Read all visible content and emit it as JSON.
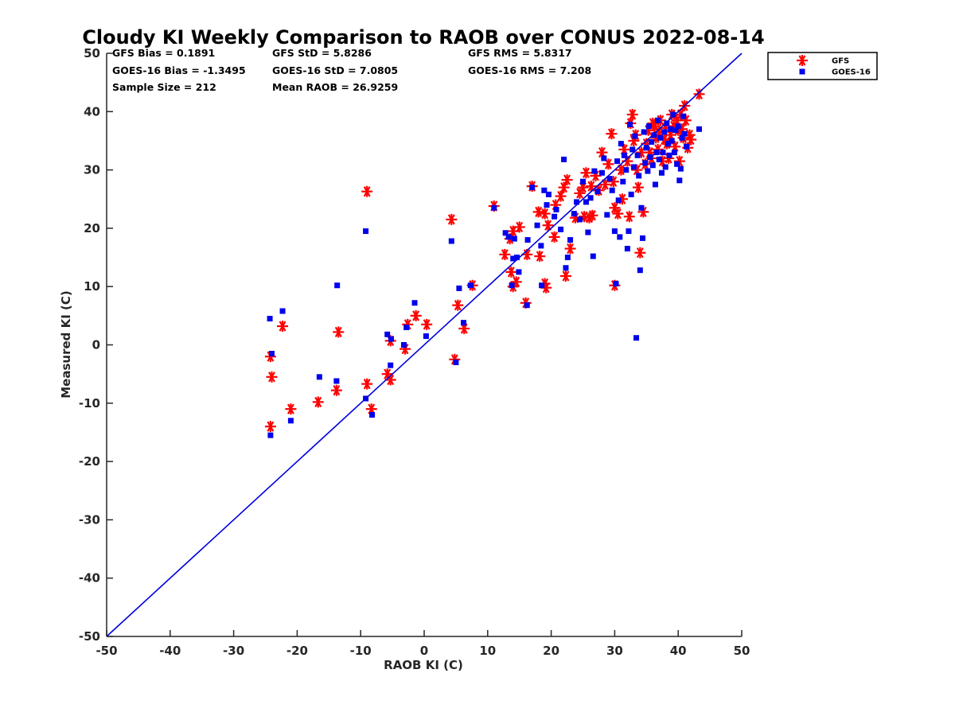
{
  "chart_data": {
    "type": "scatter",
    "title": "Cloudy KI Weekly Comparison to RAOB over CONUS 2022-08-14",
    "xlabel": "RAOB KI (C)",
    "ylabel": "Measured KI (C)",
    "xlim": [
      -50,
      50
    ],
    "ylim": [
      -50,
      50
    ],
    "xticks": [
      -50,
      -40,
      -30,
      -20,
      -10,
      0,
      10,
      20,
      30,
      40,
      50
    ],
    "yticks": [
      -50,
      -40,
      -30,
      -20,
      -10,
      0,
      10,
      20,
      30,
      40,
      50
    ],
    "grid": false,
    "legend_position": "outside top-right",
    "reference_line": {
      "name": "1:1 line",
      "from": [
        -50,
        -50
      ],
      "to": [
        50,
        50
      ],
      "color": "#0000dd"
    },
    "stats": [
      [
        "GFS Bias = 0.1891",
        "GFS StD = 5.8286",
        "GFS RMS = 5.8317"
      ],
      [
        "GOES-16 Bias = -1.3495",
        "GOES-16 StD = 7.0805",
        "GOES-16 RMS = 7.208"
      ],
      [
        "Sample Size = 212",
        "Mean RAOB = 26.9259",
        ""
      ]
    ],
    "series": [
      {
        "name": "GFS",
        "marker": "asterisk",
        "color": "#ff0000",
        "points": [
          [
            -24.2,
            -2
          ],
          [
            -24.0,
            -5.5
          ],
          [
            -24.2,
            -14
          ],
          [
            -22.3,
            3.2
          ],
          [
            -21.0,
            -11
          ],
          [
            -16.7,
            -9.8
          ],
          [
            -13.8,
            -7.8
          ],
          [
            -13.5,
            2.2
          ],
          [
            -9.0,
            26.3
          ],
          [
            -9.0,
            -6.7
          ],
          [
            -8.3,
            -11
          ],
          [
            -5.8,
            -5
          ],
          [
            -5.3,
            -6
          ],
          [
            -5.3,
            0.7
          ],
          [
            -3.0,
            -0.7
          ],
          [
            -2.6,
            3.5
          ],
          [
            -1.3,
            5
          ],
          [
            0.4,
            3.5
          ],
          [
            4.3,
            21.5
          ],
          [
            4.8,
            -2.5
          ],
          [
            5.3,
            6.8
          ],
          [
            6.3,
            2.8
          ],
          [
            7.6,
            10.2
          ],
          [
            11.0,
            23.8
          ],
          [
            12.7,
            15.5
          ],
          [
            13.5,
            18.2
          ],
          [
            13.7,
            12.5
          ],
          [
            14.0,
            10
          ],
          [
            14.5,
            10.8
          ],
          [
            14.0,
            19.5
          ],
          [
            15.0,
            20.2
          ],
          [
            16.0,
            7.2
          ],
          [
            16.2,
            15.5
          ],
          [
            17.0,
            27.2
          ],
          [
            18.0,
            22.8
          ],
          [
            18.2,
            15.2
          ],
          [
            19.0,
            10.5
          ],
          [
            19.2,
            9.8
          ],
          [
            19.0,
            22.5
          ],
          [
            19.5,
            20.5
          ],
          [
            20.5,
            18.5
          ],
          [
            20.7,
            24
          ],
          [
            21.5,
            25.5
          ],
          [
            22.0,
            27
          ],
          [
            22.5,
            28.3
          ],
          [
            22.3,
            11.8
          ],
          [
            23.0,
            16.5
          ],
          [
            23.8,
            21.8
          ],
          [
            24.5,
            26
          ],
          [
            25.0,
            27
          ],
          [
            25.2,
            22
          ],
          [
            25.5,
            29.5
          ],
          [
            26.0,
            21.8
          ],
          [
            26.3,
            27.2
          ],
          [
            26.5,
            22.2
          ],
          [
            27.0,
            29
          ],
          [
            27.5,
            26.5
          ],
          [
            28.0,
            33
          ],
          [
            28.5,
            27.5
          ],
          [
            29.0,
            31
          ],
          [
            29.5,
            36.2
          ],
          [
            29.8,
            28
          ],
          [
            30.0,
            10.2
          ],
          [
            30.0,
            23.5
          ],
          [
            30.5,
            22.5
          ],
          [
            31.0,
            30
          ],
          [
            31.2,
            25
          ],
          [
            31.5,
            33.5
          ],
          [
            32.0,
            31.5
          ],
          [
            32.3,
            22
          ],
          [
            32.5,
            38
          ],
          [
            32.8,
            39.5
          ],
          [
            33.0,
            35
          ],
          [
            33.3,
            36
          ],
          [
            33.5,
            30
          ],
          [
            33.7,
            27
          ],
          [
            34.0,
            15.8
          ],
          [
            34.2,
            33
          ],
          [
            34.5,
            22.8
          ],
          [
            34.8,
            31
          ],
          [
            35.0,
            34.5
          ],
          [
            35.3,
            36.8
          ],
          [
            35.5,
            33
          ],
          [
            35.8,
            32
          ],
          [
            36.0,
            38
          ],
          [
            36.3,
            37.5
          ],
          [
            36.5,
            35.5
          ],
          [
            36.8,
            33.5
          ],
          [
            37.0,
            36.5
          ],
          [
            37.2,
            38.5
          ],
          [
            37.5,
            31.5
          ],
          [
            37.8,
            35.2
          ],
          [
            38.0,
            37.2
          ],
          [
            38.2,
            34.5
          ],
          [
            38.5,
            32
          ],
          [
            38.8,
            36
          ],
          [
            39.0,
            39.5
          ],
          [
            39.3,
            37.5
          ],
          [
            39.5,
            34
          ],
          [
            39.8,
            38.5
          ],
          [
            40.0,
            36.8
          ],
          [
            40.2,
            31.5
          ],
          [
            40.4,
            39.5
          ],
          [
            40.6,
            37
          ],
          [
            40.8,
            35.5
          ],
          [
            41.0,
            41
          ],
          [
            41.2,
            38.5
          ],
          [
            41.5,
            33.8
          ],
          [
            41.8,
            36
          ],
          [
            42.0,
            35.2
          ],
          [
            43.3,
            43
          ]
        ]
      },
      {
        "name": "GOES-16",
        "marker": "square",
        "color": "#0000ee",
        "points": [
          [
            -24.3,
            4.5
          ],
          [
            -24.0,
            -1.5
          ],
          [
            -24.2,
            -15.5
          ],
          [
            -22.3,
            5.8
          ],
          [
            -21.0,
            -13
          ],
          [
            -16.5,
            -5.5
          ],
          [
            -13.7,
            10.2
          ],
          [
            -13.8,
            -6.2
          ],
          [
            -9.2,
            19.5
          ],
          [
            -9.2,
            -9.2
          ],
          [
            -8.2,
            -12
          ],
          [
            -5.8,
            1.8
          ],
          [
            -5.3,
            -3.5
          ],
          [
            -5.2,
            1
          ],
          [
            -3.2,
            0
          ],
          [
            -2.8,
            3
          ],
          [
            -1.5,
            7.2
          ],
          [
            0.3,
            1.5
          ],
          [
            4.3,
            17.8
          ],
          [
            5.0,
            -3
          ],
          [
            5.5,
            9.7
          ],
          [
            6.2,
            3.8
          ],
          [
            7.3,
            10.2
          ],
          [
            11.0,
            23.5
          ],
          [
            12.8,
            19.2
          ],
          [
            13.3,
            18.5
          ],
          [
            13.8,
            10.2
          ],
          [
            14.0,
            14.8
          ],
          [
            14.2,
            18.2
          ],
          [
            14.6,
            15
          ],
          [
            14.9,
            12.5
          ],
          [
            16.2,
            6.8
          ],
          [
            16.3,
            18
          ],
          [
            17.0,
            27
          ],
          [
            17.8,
            20.5
          ],
          [
            18.4,
            17
          ],
          [
            18.5,
            10.2
          ],
          [
            18.9,
            26.5
          ],
          [
            19.3,
            24
          ],
          [
            19.6,
            25.8
          ],
          [
            20.5,
            22
          ],
          [
            20.8,
            23.2
          ],
          [
            21.5,
            19.8
          ],
          [
            22.0,
            31.8
          ],
          [
            22.3,
            13.2
          ],
          [
            22.6,
            15
          ],
          [
            23.0,
            18
          ],
          [
            23.6,
            22.5
          ],
          [
            24.0,
            24.5
          ],
          [
            24.5,
            21.5
          ],
          [
            25.0,
            28
          ],
          [
            25.5,
            24.5
          ],
          [
            25.8,
            19.3
          ],
          [
            26.2,
            25.2
          ],
          [
            26.6,
            15.2
          ],
          [
            26.8,
            29.8
          ],
          [
            27.3,
            26.3
          ],
          [
            28.0,
            29.5
          ],
          [
            28.3,
            32
          ],
          [
            28.8,
            22.3
          ],
          [
            29.2,
            28.5
          ],
          [
            29.6,
            26.5
          ],
          [
            30.0,
            19.5
          ],
          [
            30.2,
            10.5
          ],
          [
            30.4,
            31.5
          ],
          [
            30.6,
            24.8
          ],
          [
            30.8,
            18.5
          ],
          [
            31.0,
            34.5
          ],
          [
            31.3,
            28
          ],
          [
            31.5,
            32.5
          ],
          [
            31.8,
            30
          ],
          [
            32.0,
            16.5
          ],
          [
            32.2,
            19.5
          ],
          [
            32.4,
            37.8
          ],
          [
            32.6,
            25.8
          ],
          [
            32.8,
            33.5
          ],
          [
            33.0,
            30.5
          ],
          [
            33.2,
            35.8
          ],
          [
            33.4,
            1.2
          ],
          [
            33.6,
            32.5
          ],
          [
            33.8,
            29
          ],
          [
            34.0,
            12.8
          ],
          [
            34.2,
            23.5
          ],
          [
            34.4,
            18.3
          ],
          [
            34.6,
            36.5
          ],
          [
            34.8,
            31.2
          ],
          [
            35.0,
            33.8
          ],
          [
            35.2,
            29.8
          ],
          [
            35.4,
            37.5
          ],
          [
            35.6,
            32.2
          ],
          [
            35.8,
            34.8
          ],
          [
            36.0,
            30.8
          ],
          [
            36.2,
            36
          ],
          [
            36.4,
            27.5
          ],
          [
            36.6,
            33
          ],
          [
            36.8,
            38.5
          ],
          [
            37.0,
            31.8
          ],
          [
            37.2,
            35.5
          ],
          [
            37.4,
            29.5
          ],
          [
            37.6,
            33
          ],
          [
            37.8,
            36.5
          ],
          [
            38.0,
            30.5
          ],
          [
            38.2,
            38
          ],
          [
            38.4,
            34.5
          ],
          [
            38.6,
            32.5
          ],
          [
            38.8,
            37
          ],
          [
            39.0,
            35
          ],
          [
            39.2,
            39.5
          ],
          [
            39.4,
            33
          ],
          [
            39.6,
            36.8
          ],
          [
            39.8,
            31
          ],
          [
            40.0,
            37.5
          ],
          [
            40.2,
            28.2
          ],
          [
            40.4,
            30.2
          ],
          [
            40.6,
            35.5
          ],
          [
            40.8,
            39.2
          ],
          [
            41.0,
            36.2
          ],
          [
            41.3,
            34
          ],
          [
            43.3,
            37
          ]
        ]
      }
    ]
  }
}
